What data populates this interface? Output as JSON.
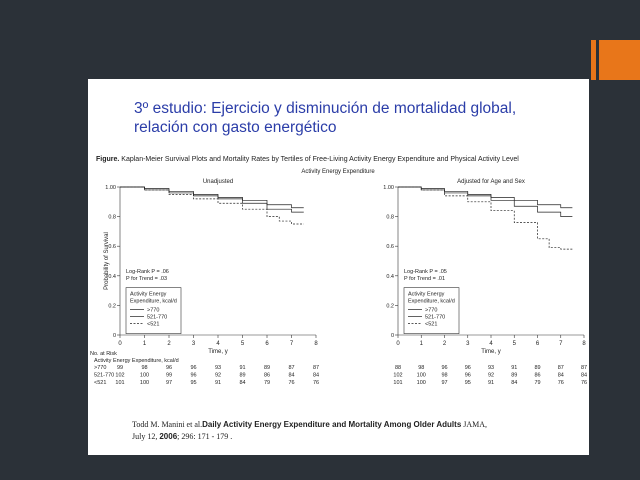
{
  "slide": {
    "title_line1": "3º estudio: Ejercicio y disminución de mortalidad global,",
    "title_line2": "relación con gasto energético",
    "figure_label": "Figure.",
    "figure_caption": "Kaplan-Meier Survival Plots and Mortality Rates by Tertiles of Free-Living Activity Energy Expenditure and Physical Activity Level",
    "citation_author": "Todd M. Manini et al.",
    "citation_title": "Daily Activity Energy Expenditure and Mortality Among Older Adults",
    "citation_journal": "JAMA,",
    "citation_date": "July 12,",
    "citation_year": "2006",
    "citation_pages": "; 296: 171 - 179 ."
  },
  "colors": {
    "background": "#2b3138",
    "accent": "#e8761a",
    "title": "#2b3da8"
  },
  "chart_data": {
    "type": "line",
    "title": "Activity Energy Expenditure",
    "ylabel": "Probability of Survival",
    "xlabel": "Time, y",
    "xlim": [
      0,
      8
    ],
    "ylim": [
      0,
      1.0
    ],
    "x_ticks": [
      "0",
      "1",
      "2",
      "3",
      "4",
      "5",
      "6",
      "7",
      "8"
    ],
    "y_ticks": [
      "0",
      "0.2",
      "0.4",
      "0.6",
      "0.8",
      "1.00"
    ],
    "legend_title": "Activity Energy Expenditure, kcal/d",
    "risk_header": "No. at Risk",
    "risk_subheader": "Activity Energy Expenditure, kcal/d",
    "panels": [
      {
        "name": "Unadjusted",
        "stat_line1": "Log-Rank P = .06",
        "stat_line2": "P for Trend = .03",
        "series": [
          {
            "name": ">770",
            "style": "solid",
            "x": [
              0,
              1,
              2,
              3,
              4,
              5,
              6,
              7,
              7.5
            ],
            "y": [
              1.0,
              0.99,
              0.97,
              0.95,
              0.93,
              0.91,
              0.88,
              0.86,
              0.86
            ]
          },
          {
            "name": "521-770",
            "style": "solid",
            "x": [
              0,
              1,
              2,
              3,
              4,
              5,
              6,
              7,
              7.5
            ],
            "y": [
              1.0,
              0.98,
              0.96,
              0.94,
              0.92,
              0.89,
              0.85,
              0.83,
              0.83
            ]
          },
          {
            "name": "<521",
            "style": "dashed",
            "x": [
              0,
              1,
              2,
              3,
              4,
              5,
              6,
              6.5,
              7,
              7.5
            ],
            "y": [
              1.0,
              0.98,
              0.95,
              0.92,
              0.89,
              0.85,
              0.8,
              0.77,
              0.75,
              0.75
            ]
          }
        ],
        "risk_rows": [
          {
            "label": ">770",
            "values": [
              "99",
              "98",
              "96",
              "96",
              "93",
              "91",
              "89",
              "87",
              "87"
            ]
          },
          {
            "label": "521-770",
            "values": [
              "102",
              "100",
              "99",
              "96",
              "92",
              "89",
              "86",
              "84",
              "84"
            ]
          },
          {
            "label": "<521",
            "values": [
              "101",
              "100",
              "97",
              "95",
              "91",
              "84",
              "79",
              "76",
              "76"
            ]
          }
        ]
      },
      {
        "name": "Adjusted for Age and Sex",
        "stat_line1": "Log-Rank P = .05",
        "stat_line2": "P for Trend = .01",
        "series": [
          {
            "name": ">770",
            "style": "solid",
            "x": [
              0,
              1,
              2,
              3,
              4,
              5,
              6,
              7,
              7.5
            ],
            "y": [
              1.0,
              0.99,
              0.97,
              0.95,
              0.93,
              0.91,
              0.88,
              0.86,
              0.86
            ]
          },
          {
            "name": "521-770",
            "style": "solid",
            "x": [
              0,
              1,
              2,
              3,
              4,
              5,
              6,
              7,
              7.5
            ],
            "y": [
              1.0,
              0.98,
              0.96,
              0.94,
              0.91,
              0.87,
              0.83,
              0.8,
              0.8
            ]
          },
          {
            "name": "<521",
            "style": "dashed",
            "x": [
              0,
              1,
              2,
              3,
              4,
              5,
              6,
              6.5,
              7,
              7.5
            ],
            "y": [
              1.0,
              0.98,
              0.94,
              0.9,
              0.84,
              0.76,
              0.65,
              0.59,
              0.58,
              0.58
            ]
          }
        ],
        "risk_rows": [
          {
            "label": ">770",
            "values": [
              "88",
              "98",
              "96",
              "96",
              "93",
              "91",
              "89",
              "87",
              "87"
            ]
          },
          {
            "label": "521-770",
            "values": [
              "102",
              "100",
              "98",
              "96",
              "92",
              "89",
              "86",
              "84",
              "84"
            ]
          },
          {
            "label": "<521",
            "values": [
              "101",
              "100",
              "97",
              "95",
              "91",
              "84",
              "79",
              "76",
              "76"
            ]
          }
        ]
      }
    ]
  }
}
